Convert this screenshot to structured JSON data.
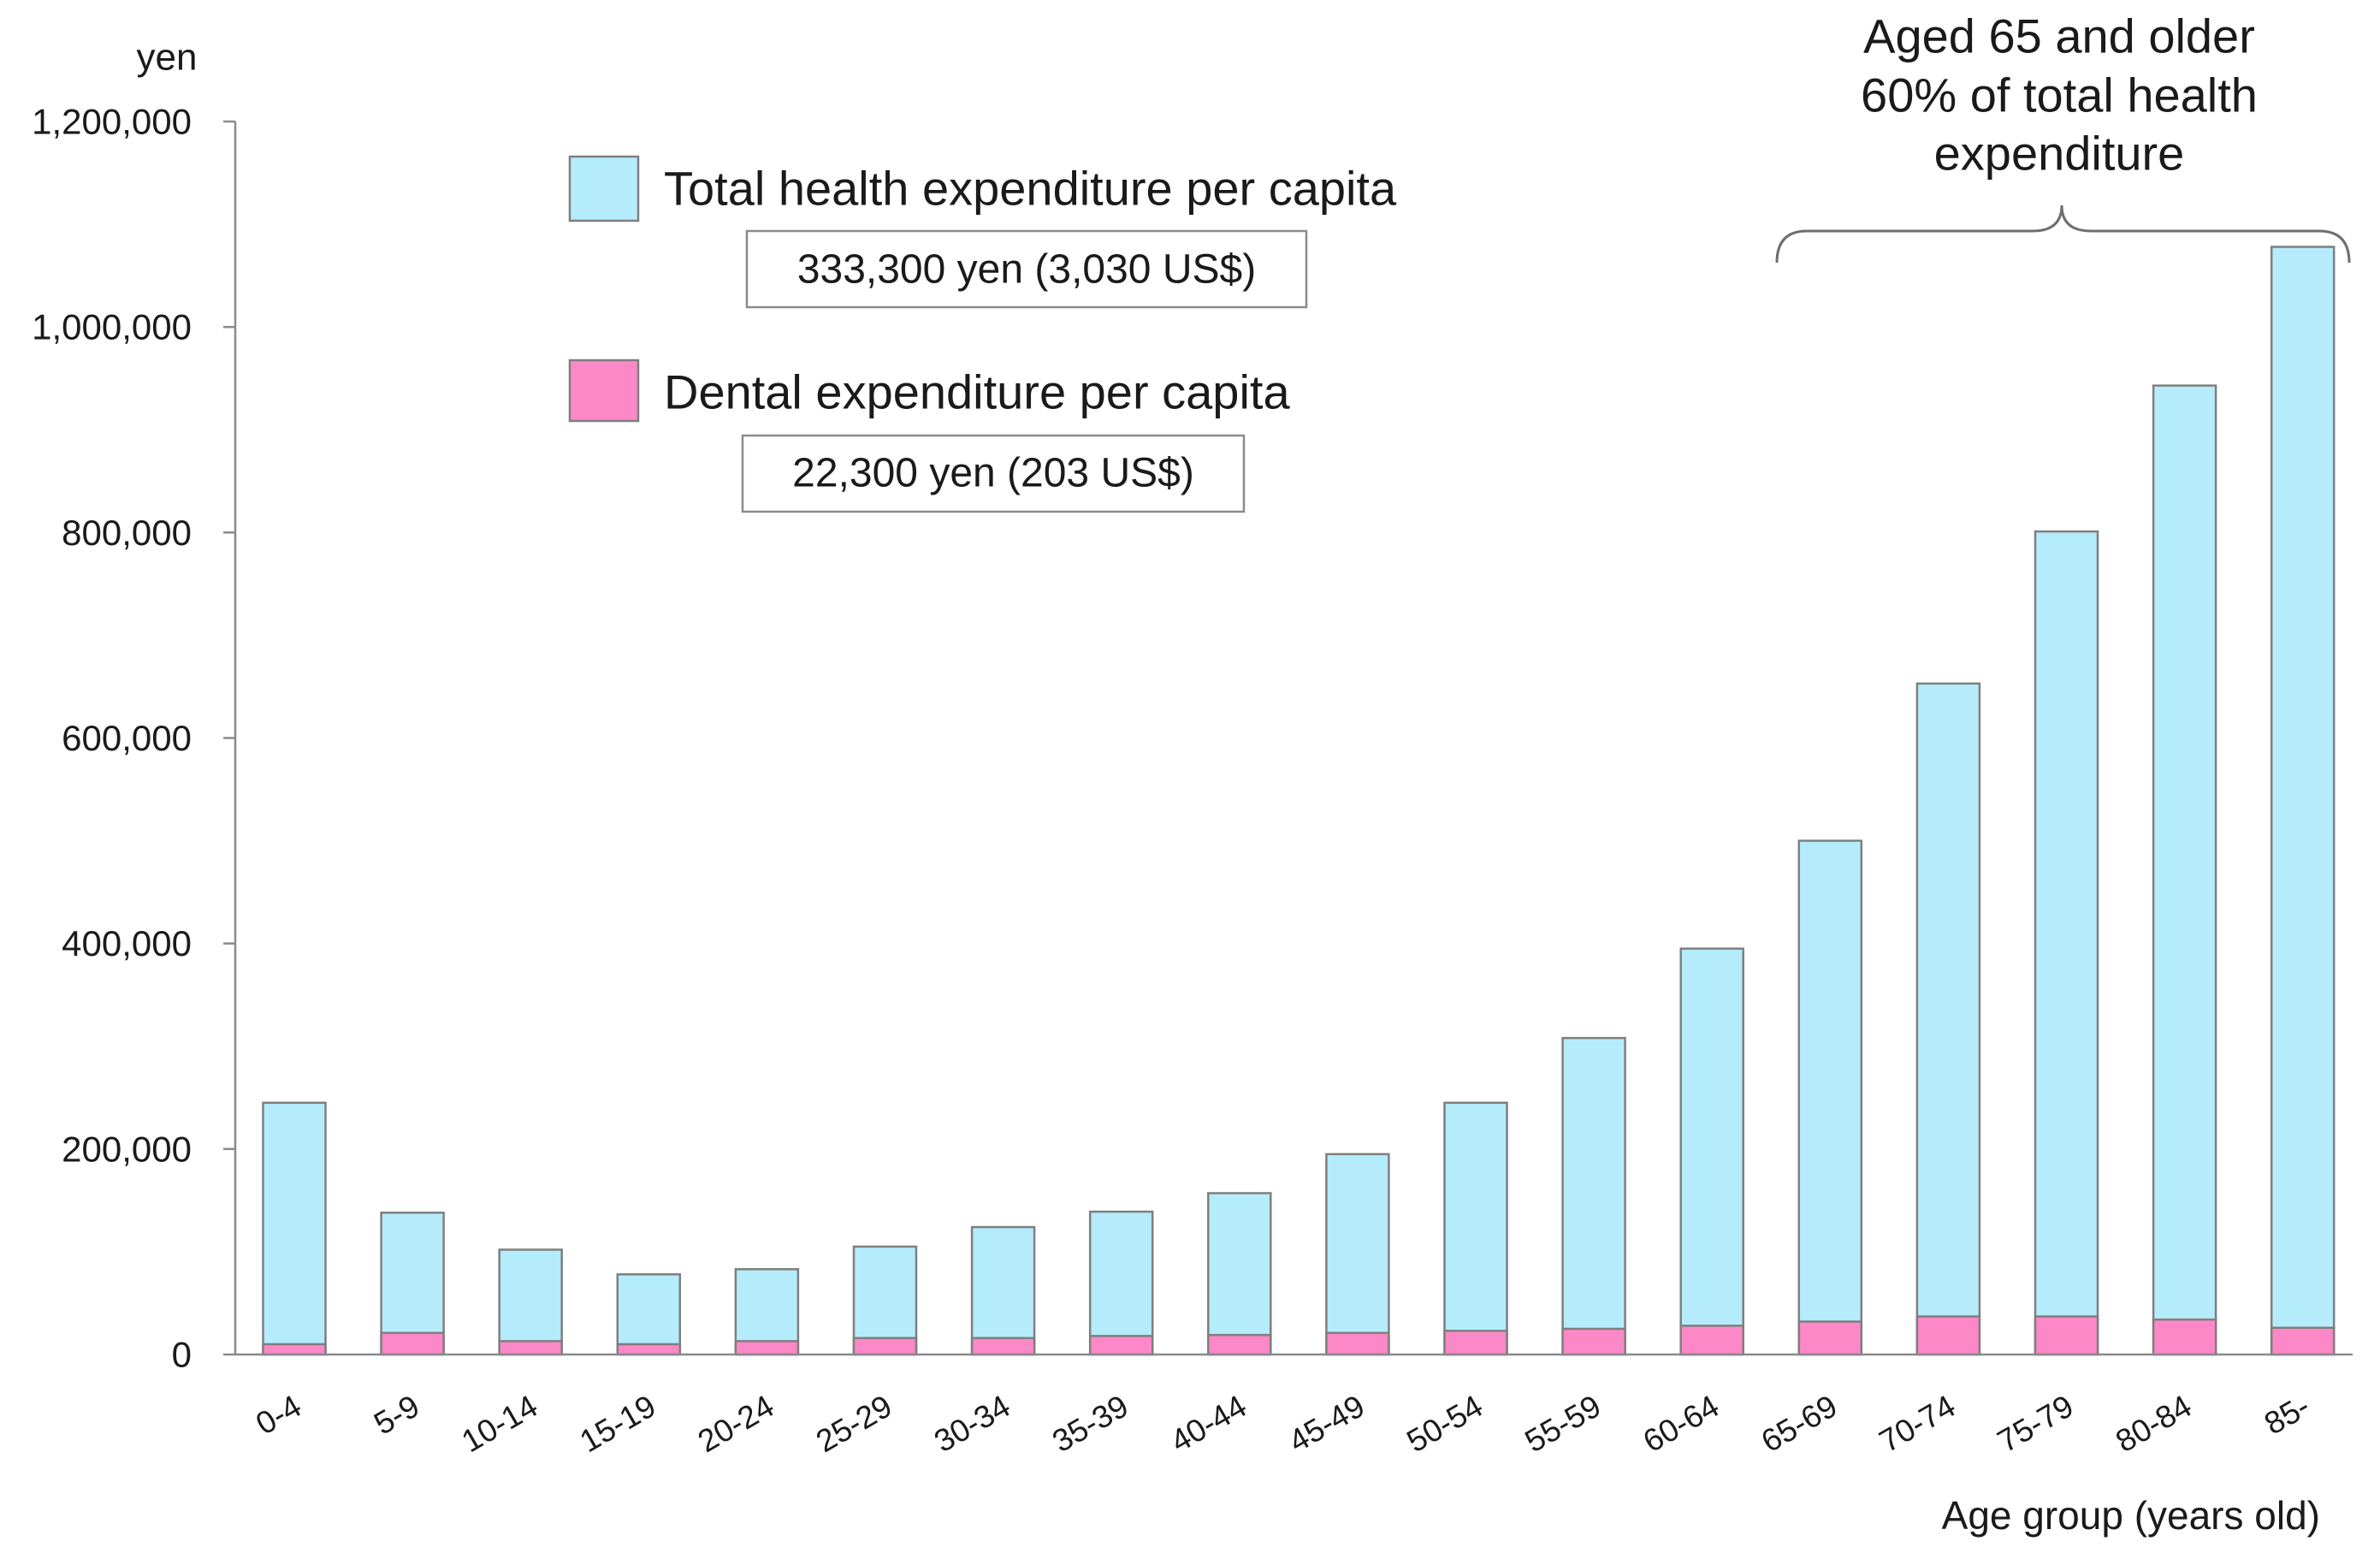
{
  "colors": {
    "total_fill": "#b5ecfb",
    "dental_fill": "#fd88c8",
    "bar_border": "#7f7f7f"
  },
  "legend": {
    "total_summary": "333,300 yen (3,030 US$)",
    "dental_summary": "22,300 yen (203 US$)"
  },
  "annotation": {
    "lines": [
      "Aged 65 and older",
      "60% of total health",
      "expenditure"
    ]
  },
  "chart_data": {
    "type": "bar",
    "title": "",
    "ylabel": "yen",
    "xlabel": "Age group (years old)",
    "ylim": [
      0,
      1200000
    ],
    "y_ticks": [
      0,
      200000,
      400000,
      600000,
      800000,
      1000000,
      1200000
    ],
    "y_tick_labels": [
      "0",
      "200,000",
      "400,000",
      "600,000",
      "800,000",
      "1,000,000",
      "1,200,000"
    ],
    "grid": false,
    "categories": [
      "0-4",
      "5-9",
      "10-14",
      "15-19",
      "20-24",
      "25-29",
      "30-34",
      "35-39",
      "40-44",
      "45-49",
      "50-54",
      "55-59",
      "60-64",
      "65-69",
      "70-74",
      "75-79",
      "80-84",
      "85-"
    ],
    "series": [
      {
        "name": "Total health expenditure per capita",
        "values": [
          245000,
          138000,
          102000,
          78000,
          83000,
          105000,
          124000,
          139000,
          157000,
          195000,
          245000,
          308000,
          395000,
          500000,
          653000,
          801000,
          943000,
          1078000
        ]
      },
      {
        "name": "Dental expenditure per capita",
        "values": [
          10000,
          21000,
          13000,
          10000,
          13000,
          16000,
          16000,
          18000,
          19000,
          21000,
          23000,
          25000,
          28000,
          32000,
          37000,
          37000,
          34000,
          26000
        ]
      }
    ]
  }
}
